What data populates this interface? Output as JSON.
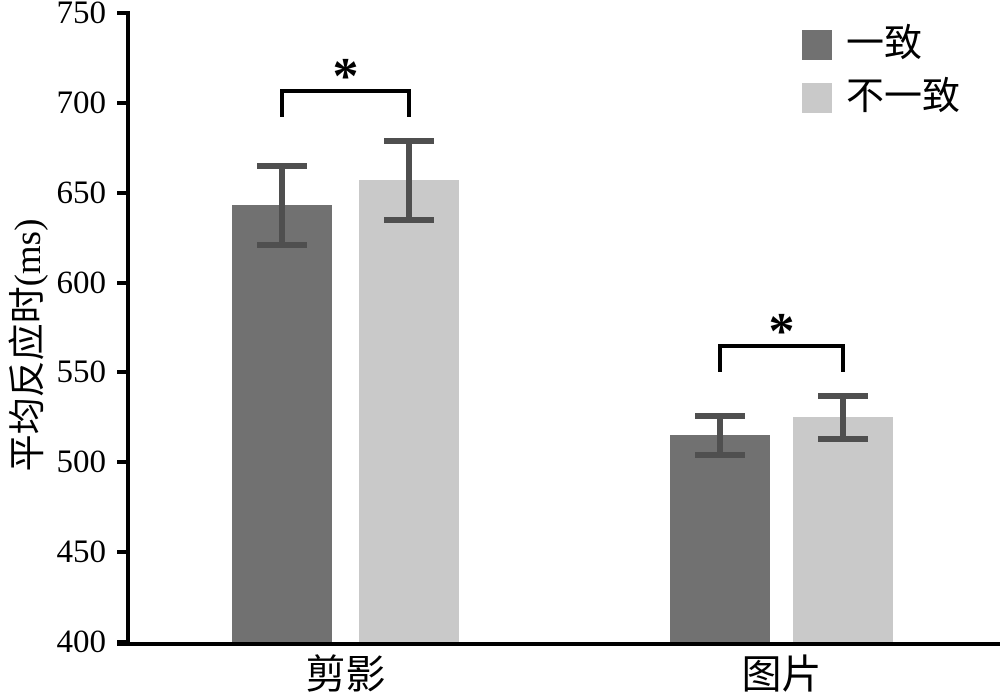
{
  "chart_data": {
    "type": "bar",
    "title": "",
    "ylabel": "平均反应时(ms)",
    "xlabel": "",
    "categories": [
      "剪影",
      "图片"
    ],
    "series": [
      {
        "name": "一致",
        "color": "#717171",
        "values": [
          643,
          515
        ],
        "errors": [
          22,
          11
        ]
      },
      {
        "name": "不一致",
        "color": "#c9c9c9",
        "values": [
          657,
          525
        ],
        "errors": [
          22,
          12
        ]
      }
    ],
    "ylim": [
      400,
      750
    ],
    "yticks": [
      750,
      700,
      650,
      600,
      550,
      500,
      450,
      400
    ],
    "ytick_step": 50,
    "significance": [
      {
        "group": "剪影",
        "between": [
          "一致",
          "不一致"
        ],
        "label": "*"
      },
      {
        "group": "图片",
        "between": [
          "一致",
          "不一致"
        ],
        "label": "*"
      }
    ],
    "error_bar_color": "#4f4f4f",
    "axis_color": "#000000",
    "background": "#ffffff",
    "legend_position": "top-right",
    "grid": false
  }
}
